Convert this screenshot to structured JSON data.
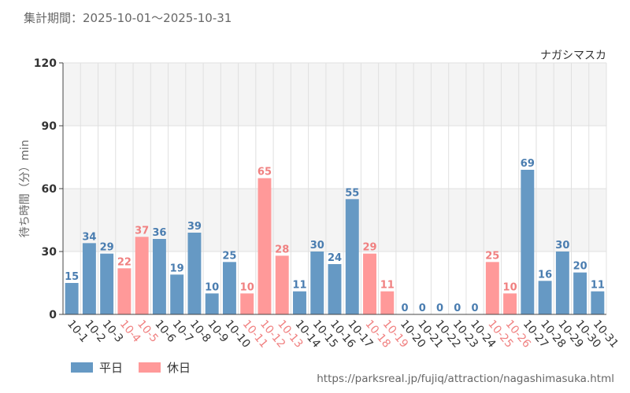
{
  "header": {
    "period": "集計期間：2025-10-01～2025-10-31"
  },
  "footer": {
    "url": "https://parksreal.jp/fujiq/attraction/nagashimasuka.html"
  },
  "colors": {
    "weekday": "#6699c4",
    "holiday": "#ff9999",
    "weekday_label": "#4a7db0",
    "holiday_label": "#f08080",
    "axis_text": "#333333",
    "band": "#f4f4f4",
    "grid": "#e0e0e0"
  },
  "chart_data": {
    "type": "bar",
    "attraction": "ナガシマスカ",
    "ylabel": "待ち時間（分）min",
    "xlabel": "",
    "ylim": [
      0,
      120
    ],
    "yticks": [
      0,
      30,
      60,
      90,
      120
    ],
    "grid": true,
    "legend_position": "bottom-left",
    "legend": [
      {
        "key": "weekday",
        "label": "平日"
      },
      {
        "key": "holiday",
        "label": "休日"
      }
    ],
    "categories": [
      "10-1",
      "10-2",
      "10-3",
      "10-4",
      "10-5",
      "10-6",
      "10-7",
      "10-8",
      "10-9",
      "10-10",
      "10-11",
      "10-12",
      "10-13",
      "10-14",
      "10-15",
      "10-16",
      "10-17",
      "10-18",
      "10-19",
      "10-20",
      "10-21",
      "10-22",
      "10-23",
      "10-24",
      "10-25",
      "10-26",
      "10-27",
      "10-28",
      "10-29",
      "10-30",
      "10-31"
    ],
    "values": [
      15,
      34,
      29,
      22,
      37,
      36,
      19,
      39,
      10,
      25,
      10,
      65,
      28,
      11,
      30,
      24,
      55,
      29,
      11,
      0,
      0,
      0,
      0,
      0,
      25,
      10,
      69,
      16,
      30,
      20,
      11
    ],
    "day_type": [
      "weekday",
      "weekday",
      "weekday",
      "holiday",
      "holiday",
      "weekday",
      "weekday",
      "weekday",
      "weekday",
      "weekday",
      "holiday",
      "holiday",
      "holiday",
      "weekday",
      "weekday",
      "weekday",
      "weekday",
      "holiday",
      "holiday",
      "weekday",
      "weekday",
      "weekday",
      "weekday",
      "weekday",
      "holiday",
      "holiday",
      "weekday",
      "weekday",
      "weekday",
      "weekday",
      "weekday"
    ]
  }
}
